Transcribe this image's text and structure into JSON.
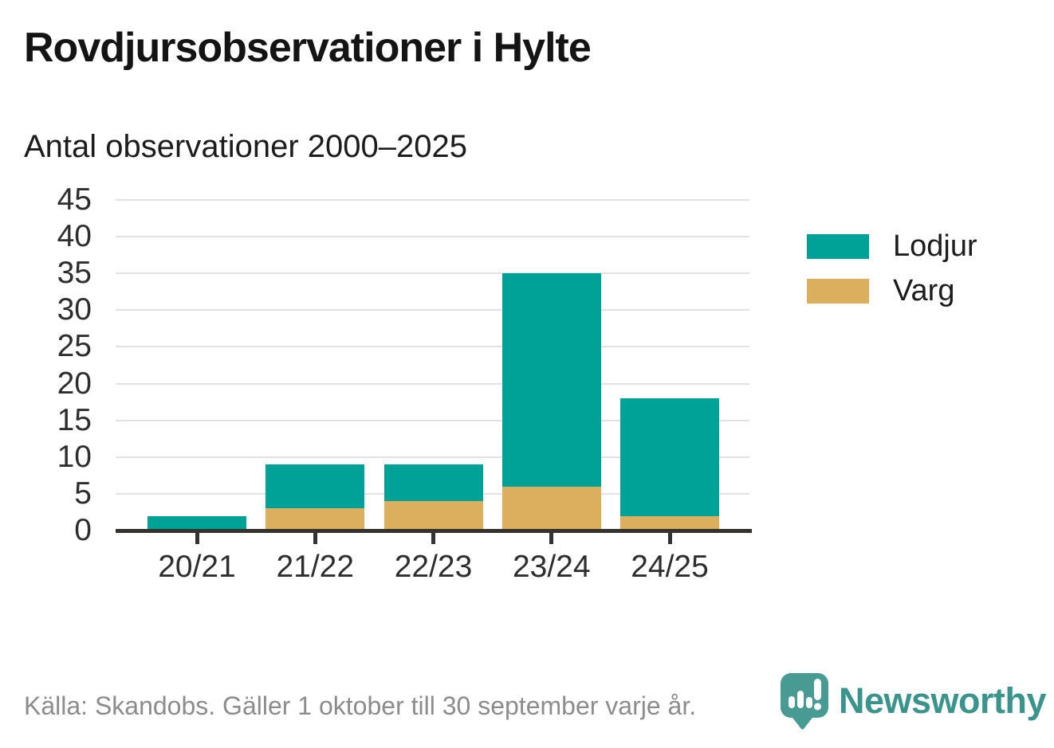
{
  "header": {
    "title": "Rovdjursobservationer i Hylte",
    "subtitle": "Antal observationer 2000–2025"
  },
  "chart_data": {
    "type": "bar",
    "stacked": true,
    "title": "Rovdjursobservationer i Hylte",
    "subtitle": "Antal observationer 2000–2025",
    "categories": [
      "20/21",
      "21/22",
      "22/23",
      "23/24",
      "24/25"
    ],
    "series": [
      {
        "name": "Lodjur",
        "color": "#00A298",
        "values": [
          2,
          6,
          5,
          29,
          16
        ]
      },
      {
        "name": "Varg",
        "color": "#DCAF5E",
        "values": [
          0,
          3,
          4,
          6,
          2
        ]
      }
    ],
    "stack_bottom_series": "Varg",
    "totals": [
      2,
      9,
      9,
      35,
      18
    ],
    "xlabel": "",
    "ylabel": "",
    "ylim": [
      0,
      45
    ],
    "yticks": [
      0,
      5,
      10,
      15,
      20,
      25,
      30,
      35,
      40,
      45
    ],
    "grid": true,
    "legend_position": "right"
  },
  "legend": {
    "items": [
      {
        "label": "Lodjur",
        "color": "#00A298"
      },
      {
        "label": "Varg",
        "color": "#DCAF5E"
      }
    ]
  },
  "footer": {
    "source": "Källa: Skandobs. Gäller 1 oktober till 30 september varje år.",
    "brand": "Newsworthy",
    "brand_color": "#3A948C",
    "logo_icon_color": "#489B93",
    "logo_icon": "speech-bubble-bar-chart-icon"
  }
}
